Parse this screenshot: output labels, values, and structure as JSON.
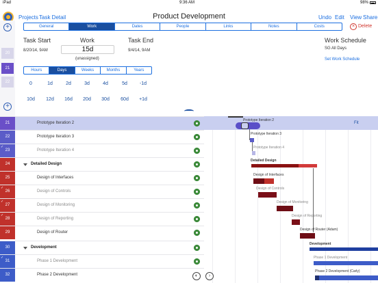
{
  "status": {
    "carrier": "iPad",
    "time": "9:36 AM",
    "battery": "98%"
  },
  "nav": {
    "projects": "Projects",
    "task_detail": "Task Detail",
    "title": "Product Development",
    "undo": "Undo",
    "edit": "Edit",
    "view": "View",
    "share": "Share"
  },
  "tabs": [
    "General",
    "Work",
    "Dates",
    "People",
    "Links",
    "Notes",
    "Costs"
  ],
  "active_tab": "Work",
  "delete_label": "Delete",
  "task": {
    "start_label": "Task Start",
    "start_value": "8/20/14, 9AM",
    "work_label": "Work",
    "work_value": "15d",
    "work_sub": "(unassigned)",
    "end_label": "Task End",
    "end_value": "9/4/14, 9AM",
    "schedule_label": "Work Schedule",
    "schedule_value": "SG All Days",
    "schedule_link": "Set Work Schedule"
  },
  "units": [
    "Hours",
    "Days",
    "Weeks",
    "Months",
    "Years"
  ],
  "active_unit": "Days",
  "quick_row1": [
    "0",
    "1d",
    "2d",
    "3d",
    "4d",
    "5d",
    "-1d"
  ],
  "quick_row2": [
    "10d",
    "12d",
    "16d",
    "20d",
    "30d",
    "60d",
    "+1d"
  ],
  "sidebar_nums": [
    "20",
    "21",
    "22"
  ],
  "fit_label": "Fit",
  "tasks": [
    {
      "num": "21",
      "name": "Prototype Iteration 2",
      "style": "normal",
      "color": "#6a4fc8",
      "check": false,
      "selected": true
    },
    {
      "num": "22",
      "name": "Prototype Iteration 3",
      "style": "normal",
      "color": "#5a5cc8",
      "check": false,
      "selected": false
    },
    {
      "num": "23",
      "name": "Prototype Iteration 4",
      "style": "muted",
      "color": "#5a5cc8",
      "check": true,
      "selected": false
    },
    {
      "num": "24",
      "name": "Detailed Design",
      "style": "bold",
      "color": "#c0312b",
      "check": false,
      "selected": false
    },
    {
      "num": "25",
      "name": "Design of Interfaces",
      "style": "normal",
      "color": "#c0312b",
      "check": false,
      "selected": false
    },
    {
      "num": "26",
      "name": "Design of Controls",
      "style": "muted",
      "color": "#c0312b",
      "check": true,
      "selected": false
    },
    {
      "num": "27",
      "name": "Design of Monitoring",
      "style": "muted",
      "color": "#c0312b",
      "check": true,
      "selected": false
    },
    {
      "num": "28",
      "name": "Design of Reporting",
      "style": "muted",
      "color": "#c0312b",
      "check": true,
      "selected": false
    },
    {
      "num": "29",
      "name": "Design of Router",
      "style": "normal",
      "color": "#c0312b",
      "check": false,
      "selected": false
    },
    {
      "num": "30",
      "name": "Development",
      "style": "bold",
      "color": "#3d5cc8",
      "check": false,
      "selected": false
    },
    {
      "num": "31",
      "name": "Phase 1 Development",
      "style": "muted",
      "color": "#3d5cc8",
      "check": true,
      "selected": false
    },
    {
      "num": "32",
      "name": "Phase 2 Development",
      "style": "normal",
      "color": "#3d5cc8",
      "check": false,
      "selected": false
    }
  ],
  "gantt_labels": [
    "Prototype Iteration 2",
    "Prototype Iteration 3",
    "Prototype Iteration 4",
    "Detailed Design",
    "Design of Interfaces",
    "Design of Controls",
    "Design of Monitoring",
    "Design of Reporting",
    "Design of Router (Adam)",
    "Development",
    "Phase 1 Development",
    "Phase 2 Development (Carly)"
  ]
}
